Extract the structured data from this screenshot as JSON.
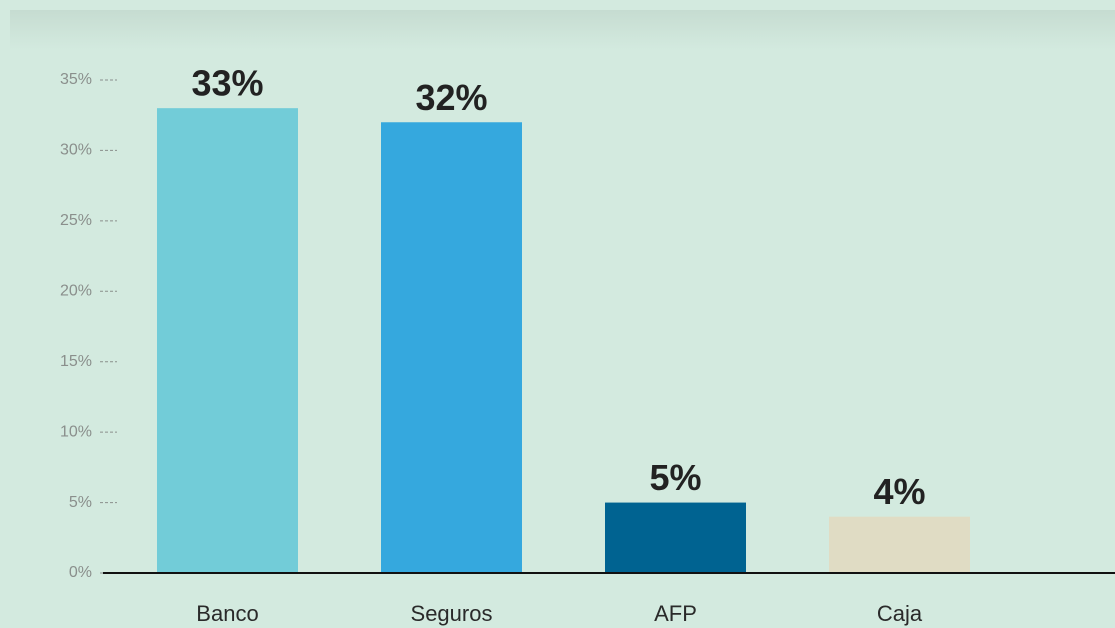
{
  "chart_data": {
    "type": "bar",
    "categories": [
      "Banco",
      "Seguros",
      "AFP",
      "Caja"
    ],
    "values": [
      33,
      32,
      5,
      4
    ],
    "value_labels": [
      "33%",
      "32%",
      "5%",
      "4%"
    ],
    "colors": [
      "#72ccd8",
      "#35a8de",
      "#006391",
      "#e0dcc4"
    ],
    "ylim": [
      0,
      35
    ],
    "yticks": [
      {
        "value": 0,
        "label": "0%"
      },
      {
        "value": 5,
        "label": "5%"
      },
      {
        "value": 10,
        "label": "10%"
      },
      {
        "value": 15,
        "label": "15%"
      },
      {
        "value": 20,
        "label": "20%"
      },
      {
        "value": 25,
        "label": "25%"
      },
      {
        "value": 30,
        "label": "30%"
      },
      {
        "value": 35,
        "label": "35%"
      }
    ]
  }
}
